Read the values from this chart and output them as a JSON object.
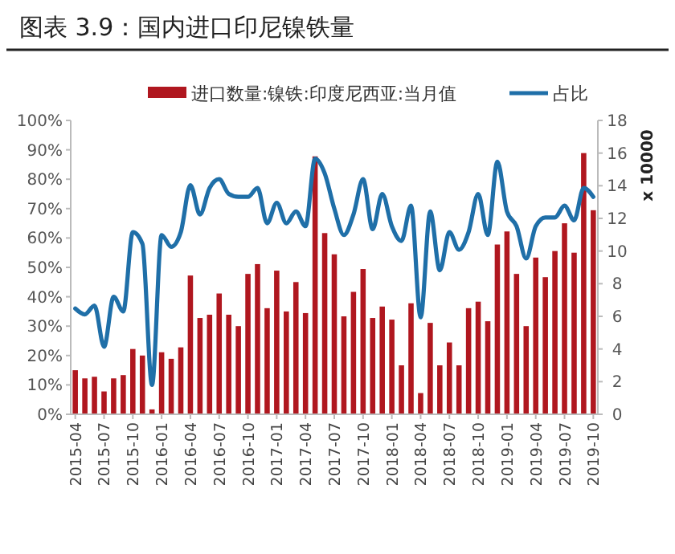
{
  "chart_data": {
    "type": "bar",
    "title": "图表 3.9：国内进口印尼镍铁量",
    "y2label": "x 10000",
    "categories": [
      "2015-04",
      null,
      null,
      "2015-07",
      null,
      null,
      "2015-10",
      null,
      null,
      "2016-01",
      null,
      null,
      "2016-04",
      null,
      null,
      "2016-07",
      null,
      null,
      "2016-10",
      null,
      null,
      "2017-01",
      null,
      null,
      "2017-04",
      null,
      null,
      "2017-07",
      null,
      null,
      "2017-10",
      null,
      null,
      "2018-01",
      null,
      null,
      "2018-04",
      null,
      null,
      "2018-07",
      null,
      null,
      "2018-10",
      null,
      null,
      "2019-01",
      null,
      null,
      "2019-04",
      null,
      null,
      "2019-07",
      null,
      null,
      "2019-10"
    ],
    "series": [
      {
        "name": "进口数量:镍铁:印度尼西亚:当月值",
        "axis": "y2",
        "color": "#b0171f",
        "values": [
          2.7,
          2.2,
          2.3,
          1.4,
          2.2,
          2.4,
          4.0,
          3.6,
          0.3,
          3.8,
          3.4,
          4.1,
          8.5,
          5.9,
          6.1,
          7.4,
          6.1,
          5.4,
          8.6,
          9.2,
          6.5,
          8.8,
          6.3,
          8.1,
          6.2,
          15.8,
          11.1,
          9.8,
          6.0,
          7.5,
          8.9,
          5.9,
          6.6,
          5.8,
          3.0,
          6.8,
          1.3,
          5.6,
          3.0,
          4.4,
          3.0,
          6.5,
          6.9,
          5.7,
          10.4,
          11.2,
          8.6,
          5.4,
          9.6,
          8.4,
          10.0,
          11.7,
          9.9,
          16.0,
          12.5
        ]
      },
      {
        "name": "占比",
        "type": "line",
        "axis": "y",
        "color": "#1f6fa8",
        "values": [
          36,
          34,
          37,
          23,
          40,
          35,
          62,
          58,
          10,
          61,
          57,
          62,
          78,
          68,
          77,
          80,
          75,
          74,
          74,
          77,
          65,
          72,
          65,
          69,
          64,
          87,
          82,
          70,
          61,
          68,
          80,
          63,
          75,
          64,
          59,
          71,
          33,
          69,
          49,
          62,
          56,
          62,
          75,
          61,
          86,
          69,
          64,
          53,
          64,
          67,
          67,
          71,
          66,
          77,
          74
        ]
      }
    ],
    "ylim": [
      0,
      100
    ],
    "yticks": [
      {
        "value": 0,
        "label": "0%"
      },
      {
        "value": 10,
        "label": "10%"
      },
      {
        "value": 20,
        "label": "20%"
      },
      {
        "value": 30,
        "label": "30%"
      },
      {
        "value": 40,
        "label": "40%"
      },
      {
        "value": 50,
        "label": "50%"
      },
      {
        "value": 60,
        "label": "60%"
      },
      {
        "value": 70,
        "label": "70%"
      },
      {
        "value": 80,
        "label": "80%"
      },
      {
        "value": 90,
        "label": "90%"
      },
      {
        "value": 100,
        "label": "100%"
      }
    ],
    "y2lim": [
      0,
      18
    ],
    "y2ticks": [
      0,
      2,
      4,
      6,
      8,
      10,
      12,
      14,
      16,
      18
    ],
    "legend": "top",
    "grid": false,
    "marker": "none",
    "line_style": "solid"
  }
}
